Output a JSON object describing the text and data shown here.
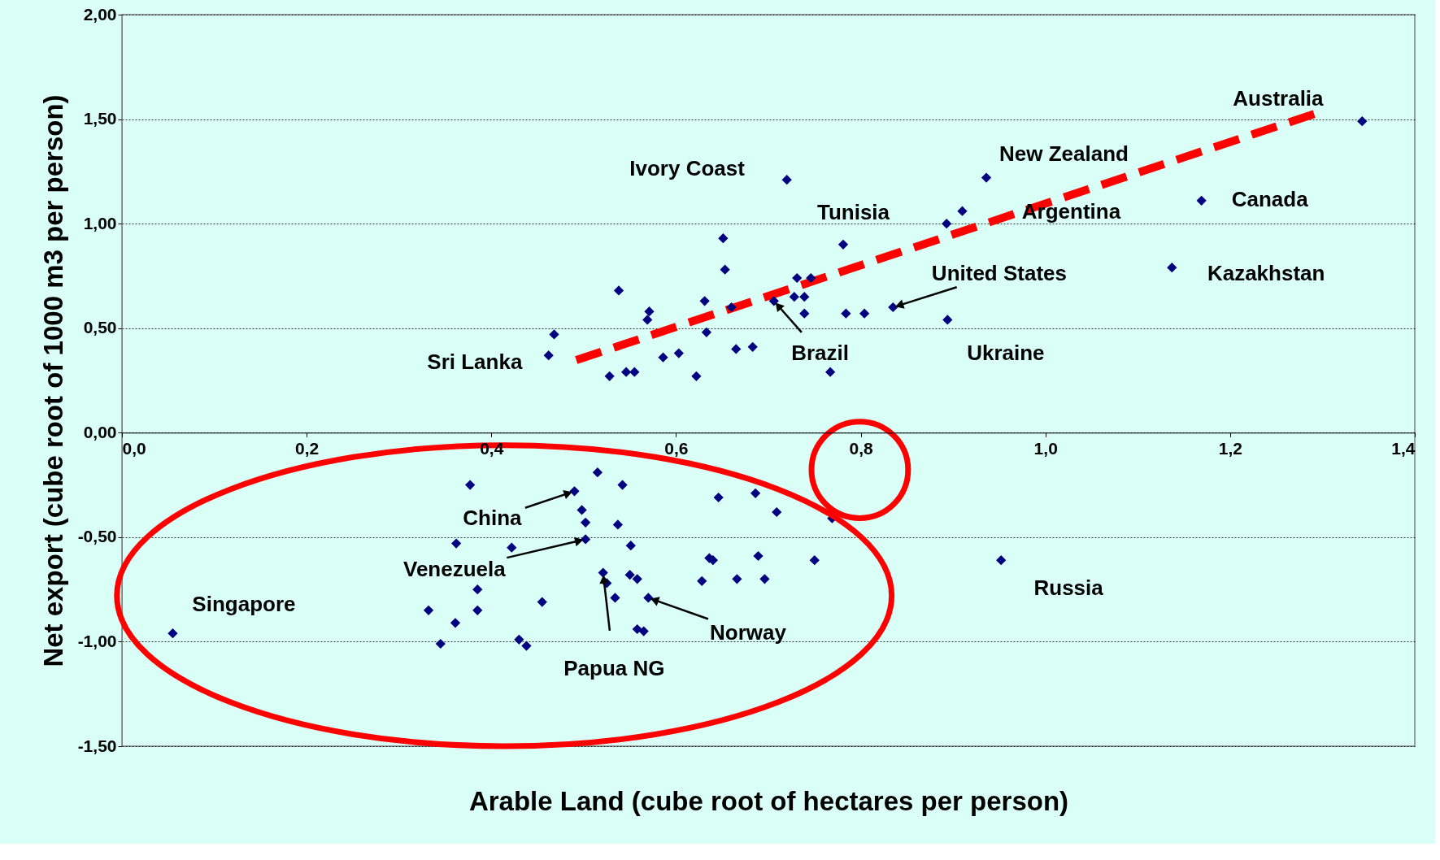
{
  "chart_data": {
    "type": "scatter",
    "xlabel": "Arable Land (cube root of hectares per person)",
    "ylabel": "Net export (cube root of 1000 m3 per person)",
    "xlim": [
      0,
      1.4
    ],
    "ylim": [
      -1.5,
      2.0
    ],
    "xticks": [
      {
        "value": 0,
        "label": "0,0"
      },
      {
        "value": 0.2,
        "label": "0,2"
      },
      {
        "value": 0.4,
        "label": "0,4"
      },
      {
        "value": 0.6,
        "label": "0,6"
      },
      {
        "value": 0.8,
        "label": "0,8"
      },
      {
        "value": 1.0,
        "label": "1,0"
      },
      {
        "value": 1.2,
        "label": "1,2"
      },
      {
        "value": 1.4,
        "label": "1,4"
      }
    ],
    "yticks": [
      {
        "value": -1.5,
        "label": "-1,50"
      },
      {
        "value": -1.0,
        "label": "-1,00"
      },
      {
        "value": -0.5,
        "label": "-0,50"
      },
      {
        "value": 0,
        "label": "0,00"
      },
      {
        "value": 0.5,
        "label": "0,50"
      },
      {
        "value": 1.0,
        "label": "1,00"
      },
      {
        "value": 1.5,
        "label": "1,50"
      },
      {
        "value": 2.0,
        "label": "2,00"
      }
    ],
    "grid": "y",
    "legend": false,
    "series": [
      {
        "marker": "diamond",
        "color": "#000080",
        "x": [
          1.343,
          0.936,
          0.91,
          0.893,
          1.169,
          1.137,
          0.72,
          0.781,
          0.651,
          0.653,
          0.538,
          0.571,
          0.569,
          0.468,
          0.462,
          0.631,
          0.66,
          0.633,
          0.706,
          0.731,
          0.746,
          0.728,
          0.739,
          0.739,
          0.784,
          0.804,
          0.835,
          0.894,
          0.665,
          0.683,
          0.586,
          0.603,
          0.528,
          0.546,
          0.555,
          0.622,
          0.767,
          0.055,
          0.377,
          0.362,
          0.332,
          0.345,
          0.361,
          0.385,
          0.385,
          0.422,
          0.455,
          0.43,
          0.438,
          0.515,
          0.542,
          0.49,
          0.498,
          0.502,
          0.502,
          0.537,
          0.551,
          0.521,
          0.525,
          0.534,
          0.55,
          0.558,
          0.57,
          0.558,
          0.565,
          0.646,
          0.686,
          0.709,
          0.769,
          0.636,
          0.64,
          0.689,
          0.628,
          0.666,
          0.696,
          0.75,
          0.952
        ],
        "values": [
          1.49,
          1.22,
          1.06,
          1.0,
          1.11,
          0.79,
          1.21,
          0.9,
          0.93,
          0.78,
          0.68,
          0.58,
          0.54,
          0.47,
          0.37,
          0.63,
          0.6,
          0.48,
          0.63,
          0.74,
          0.74,
          0.65,
          0.65,
          0.57,
          0.57,
          0.57,
          0.6,
          0.54,
          0.4,
          0.41,
          0.36,
          0.38,
          0.27,
          0.29,
          0.29,
          0.27,
          0.29,
          -0.96,
          -0.25,
          -0.53,
          -0.85,
          -1.01,
          -0.91,
          -0.75,
          -0.85,
          -0.55,
          -0.81,
          -0.99,
          -1.02,
          -0.19,
          -0.25,
          -0.28,
          -0.37,
          -0.43,
          -0.51,
          -0.44,
          -0.54,
          -0.67,
          -0.72,
          -0.79,
          -0.68,
          -0.7,
          -0.79,
          -0.94,
          -0.95,
          -0.31,
          -0.29,
          -0.38,
          -0.41,
          -0.6,
          -0.61,
          -0.59,
          -0.71,
          -0.7,
          -0.7,
          -0.61,
          -0.61
        ]
      },
      {
        "type": "line",
        "color": "#ff0000",
        "line_style": "dashed",
        "x": [
          0.492,
          1.291
        ],
        "values": [
          0.347,
          1.525
        ]
      }
    ],
    "annotations": [
      {
        "text": "Australia",
        "x": 1.343,
        "y": 1.49
      },
      {
        "text": "New Zealand",
        "x": 0.936,
        "y": 1.22
      },
      {
        "text": "Ivory  Coast",
        "x": 0.72,
        "y": 1.21
      },
      {
        "text": "Tunisia",
        "x": 0.781,
        "y": 0.9
      },
      {
        "text": "Argentina",
        "x": 0.91,
        "y": 1.06
      },
      {
        "text": "Canada",
        "x": 1.169,
        "y": 1.11
      },
      {
        "text": "Kazakhstan",
        "x": 1.137,
        "y": 0.79
      },
      {
        "text": "United States",
        "x": 0.835,
        "y": 0.6
      },
      {
        "text": "Brazil",
        "x": 0.706,
        "y": 0.63
      },
      {
        "text": "Ukraine",
        "x": 0.894,
        "y": 0.54
      },
      {
        "text": "Sri Lanka",
        "x": 0.462,
        "y": 0.37
      },
      {
        "text": "China",
        "x": 0.49,
        "y": -0.28
      },
      {
        "text": "Venezuela",
        "x": 0.502,
        "y": -0.51
      },
      {
        "text": "Papua NG",
        "x": 0.521,
        "y": -0.67
      },
      {
        "text": "Norway",
        "x": 0.57,
        "y": -0.79
      },
      {
        "text": "Singapore",
        "x": 0.055,
        "y": -0.96
      },
      {
        "text": "Russia",
        "x": 0.952,
        "y": -0.61
      }
    ]
  }
}
